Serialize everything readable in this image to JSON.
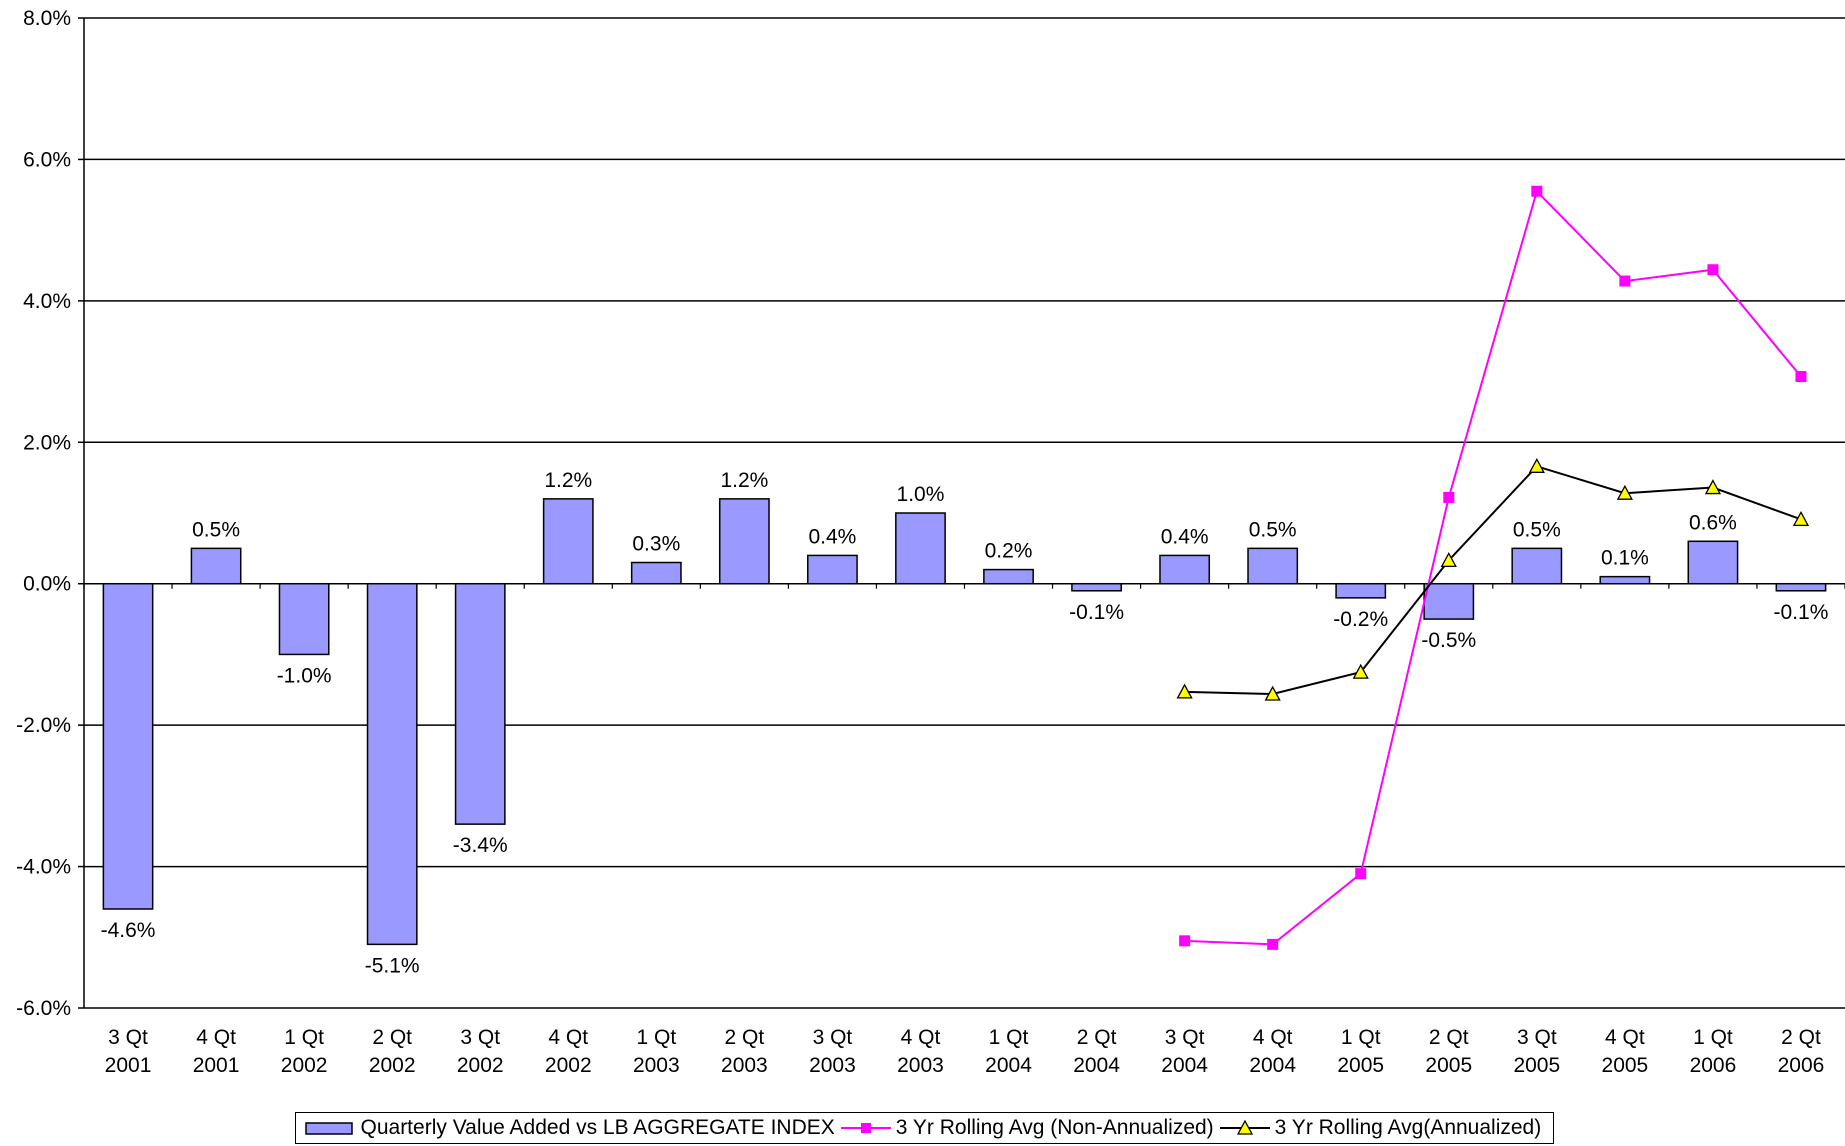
{
  "chart_data": {
    "type": "bar",
    "categories": [
      "3 Qt 2001",
      "4 Qt 2001",
      "1 Qt 2002",
      "2 Qt 2002",
      "3 Qt 2002",
      "4 Qt 2002",
      "1 Qt 2003",
      "2 Qt 2003",
      "3 Qt 2003",
      "4 Qt 2003",
      "1 Qt 2004",
      "2 Qt 2004",
      "3 Qt 2004",
      "4 Qt 2004",
      "1 Qt 2005",
      "2 Qt 2005",
      "3 Qt 2005",
      "4 Qt 2005",
      "1 Qt 2006",
      "2 Qt 2006"
    ],
    "series": [
      {
        "name": "Quarterly Value Added vs LB AGGREGATE INDEX",
        "type": "bar",
        "color": "#9999ff",
        "values": [
          -4.6,
          0.5,
          -1.0,
          -5.1,
          -3.4,
          1.2,
          0.3,
          1.2,
          0.4,
          1.0,
          0.2,
          -0.1,
          0.4,
          0.5,
          -0.2,
          -0.5,
          0.5,
          0.1,
          0.6,
          -0.1
        ],
        "value_labels": [
          "-4.6%",
          "0.5%",
          "-1.0%",
          "-5.1%",
          "-3.4%",
          "1.2%",
          "0.3%",
          "1.2%",
          "0.4%",
          "1.0%",
          "0.2%",
          "-0.1%",
          "0.4%",
          "0.5%",
          "-0.2%",
          "-0.5%",
          "0.5%",
          "0.1%",
          "0.6%",
          "-0.1%"
        ]
      },
      {
        "name": "3 Yr Rolling Avg (Non-Annualized)",
        "type": "line",
        "color": "#ff00ff",
        "marker": "square",
        "values": [
          null,
          null,
          null,
          null,
          null,
          null,
          null,
          null,
          null,
          null,
          null,
          null,
          -5.05,
          -5.1,
          -4.1,
          1.22,
          5.55,
          4.28,
          4.44,
          2.93
        ]
      },
      {
        "name": "3 Yr Rolling Avg(Annualized)",
        "type": "line",
        "color": "#000000",
        "marker": "triangle",
        "marker_color": "#ffff00",
        "values": [
          null,
          null,
          null,
          null,
          null,
          null,
          null,
          null,
          null,
          null,
          null,
          null,
          -1.53,
          -1.56,
          -1.25,
          0.33,
          1.66,
          1.28,
          1.36,
          0.91
        ]
      }
    ],
    "ylim": [
      -6,
      8
    ],
    "yticks": [
      {
        "value": -6,
        "label": "-6.0%"
      },
      {
        "value": -4,
        "label": "-4.0%"
      },
      {
        "value": -2,
        "label": "-2.0%"
      },
      {
        "value": 0,
        "label": "0.0%"
      },
      {
        "value": 2,
        "label": "2.0%"
      },
      {
        "value": 4,
        "label": "4.0%"
      },
      {
        "value": 6,
        "label": "6.0%"
      },
      {
        "value": 8,
        "label": "8.0%"
      }
    ],
    "grid": true,
    "legend": "bottom"
  }
}
